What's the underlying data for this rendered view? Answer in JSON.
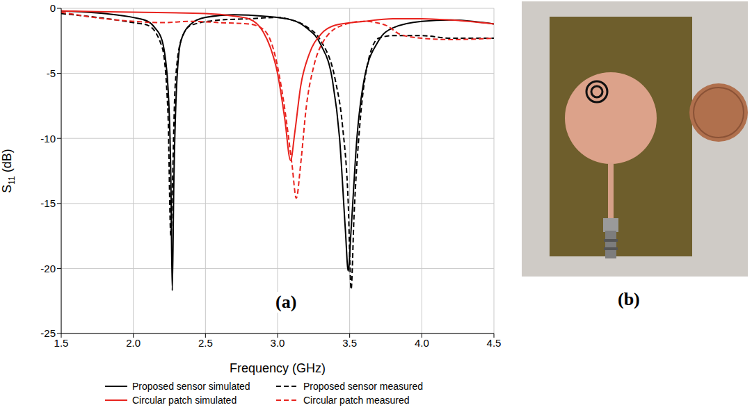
{
  "chart_data": {
    "type": "line",
    "x_label": "Frequency (GHz)",
    "y_label": "S11 (dB)",
    "annotations": [
      "(a)"
    ],
    "xlim": [
      1.5,
      4.5
    ],
    "xticks": [
      1.5,
      {
        "value": 2,
        "label": "2.0"
      },
      2.5,
      {
        "value": 3,
        "label": "3.0"
      },
      3.5,
      {
        "value": 4,
        "label": "4.0"
      },
      4.5
    ],
    "ylim": [
      -25,
      0
    ],
    "yticks": [
      -25,
      -20,
      -15,
      -10,
      -5,
      0
    ],
    "grid": true,
    "legend": "bottom",
    "series": [
      {
        "name": "Proposed sensor simulated",
        "color": "#000000",
        "line_style": "solid",
        "x": [
          1.5,
          1.8,
          2.0,
          2.1,
          2.15,
          2.2,
          2.24,
          2.26,
          2.27,
          2.28,
          2.3,
          2.33,
          2.4,
          2.5,
          2.7,
          2.9,
          3.1,
          3.2,
          3.3,
          3.38,
          3.43,
          3.47,
          3.49,
          3.51,
          3.55,
          3.6,
          3.7,
          3.8,
          4.0,
          4.2,
          4.5
        ],
        "values": [
          -0.2,
          -0.4,
          -0.7,
          -1.0,
          -1.5,
          -2.5,
          -6,
          -13,
          -21.7,
          -14,
          -6,
          -2.5,
          -1.2,
          -0.7,
          -0.5,
          -0.6,
          -0.9,
          -1.5,
          -2.8,
          -5.5,
          -10,
          -17,
          -20.2,
          -17,
          -10,
          -5.5,
          -2.5,
          -1.5,
          -1.0,
          -0.9,
          -1.2
        ]
      },
      {
        "name": "Proposed sensor measured",
        "color": "#000000",
        "line_style": "dashed",
        "x": [
          1.5,
          1.75,
          2.0,
          2.1,
          2.2,
          2.24,
          2.26,
          2.27,
          2.29,
          2.33,
          2.4,
          2.6,
          2.8,
          3.0,
          3.1,
          3.2,
          3.3,
          3.4,
          3.45,
          3.49,
          3.51,
          3.53,
          3.57,
          3.62,
          3.7,
          3.8,
          4.0,
          4.2,
          4.5
        ],
        "values": [
          -0.4,
          -0.7,
          -1.1,
          -1.3,
          -3,
          -8,
          -17.5,
          -14,
          -6,
          -2.5,
          -1.3,
          -0.9,
          -0.8,
          -0.7,
          -0.9,
          -1.4,
          -2.5,
          -5.5,
          -9,
          -15,
          -21.6,
          -16,
          -9,
          -4.5,
          -2.3,
          -2.1,
          -2.1,
          -2.3,
          -2.3
        ]
      },
      {
        "name": "Circular patch simulated",
        "color": "#e8231e",
        "line_style": "solid",
        "x": [
          1.5,
          2.0,
          2.5,
          2.7,
          2.8,
          2.9,
          2.95,
          3.0,
          3.05,
          3.09,
          3.12,
          3.16,
          3.22,
          3.3,
          3.4,
          3.6,
          3.8,
          4.0,
          4.2,
          4.5
        ],
        "values": [
          -0.2,
          -0.3,
          -0.4,
          -0.6,
          -0.8,
          -1.8,
          -3,
          -5,
          -8.5,
          -11.7,
          -9.5,
          -6,
          -3.5,
          -2.0,
          -1.3,
          -1.0,
          -0.8,
          -0.8,
          -0.9,
          -1.2
        ]
      },
      {
        "name": "Circular patch measured",
        "color": "#e8231e",
        "line_style": "dashed",
        "x": [
          1.5,
          1.8,
          2.0,
          2.2,
          2.4,
          2.6,
          2.8,
          2.9,
          2.98,
          3.04,
          3.1,
          3.13,
          3.16,
          3.2,
          3.25,
          3.32,
          3.45,
          3.6,
          3.75,
          3.85,
          4.0,
          4.2,
          4.5
        ],
        "values": [
          -0.3,
          -0.8,
          -1.0,
          -1.1,
          -1.0,
          -1.1,
          -1.2,
          -1.6,
          -3.5,
          -7,
          -12,
          -14.6,
          -12,
          -7.5,
          -4.5,
          -2.5,
          -1.3,
          -1.0,
          -1.3,
          -2.0,
          -2.3,
          -2.4,
          -2.3
        ]
      }
    ]
  },
  "image": {
    "label": "(b)"
  }
}
